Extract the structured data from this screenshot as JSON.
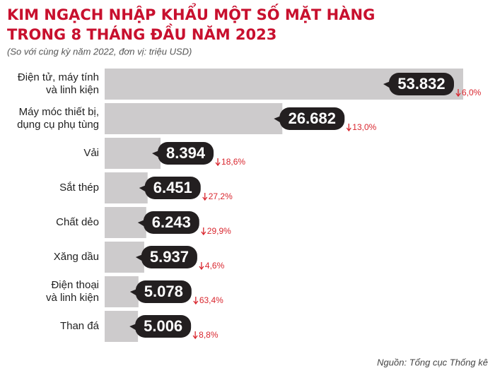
{
  "chart_data": {
    "type": "bar",
    "title": [
      "KIM NGẠCH NHẬP KHẨU MỘT SỐ MẶT HÀNG",
      "TRONG 8 THÁNG ĐẦU NĂM 2023"
    ],
    "subtitle": "(So với cùng kỳ năm 2022, đơn vị: triệu USD)",
    "categories": [
      "Điện tử, máy tính\nvà linh kiện",
      "Máy móc thiết bị,\ndụng cụ phụ tùng",
      "Vải",
      "Sắt thép",
      "Chất dẻo",
      "Xăng dầu",
      "Điện thoại\nvà linh kiện",
      "Than đá"
    ],
    "values": [
      53832,
      26682,
      8394,
      6451,
      6243,
      5937,
      5078,
      5006
    ],
    "value_labels": [
      "53.832",
      "26.682",
      "8.394",
      "6.451",
      "6.243",
      "5.937",
      "5.078",
      "5.006"
    ],
    "color": "#cdcbcc",
    "changes": {
      "values": [
        -6.0,
        -13.0,
        -18.6,
        -27.2,
        -29.9,
        -4.6,
        -63.4,
        -8.8
      ],
      "value_labels": [
        "6,0%",
        "13,0%",
        "18,6%",
        "27,2%",
        "29,9%",
        "4,6%",
        "63,4%",
        "8,8%"
      ],
      "color": "#d9262e"
    },
    "source": "Nguồn: Tổng cục Thống kê"
  }
}
